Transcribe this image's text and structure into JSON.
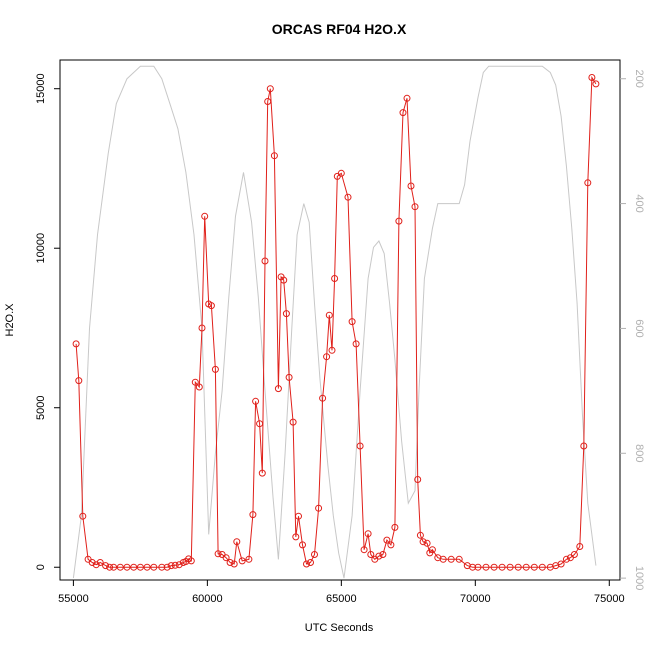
{
  "chart_data": {
    "type": "line",
    "title": "ORCAS RF04 H2O.X",
    "xlabel": "UTC Seconds",
    "ylabel": "H2O.X",
    "xlim": [
      54500,
      75400
    ],
    "ylim": [
      -400,
      15900
    ],
    "xticks": [
      55000,
      60000,
      65000,
      70000,
      75000
    ],
    "yticks": [
      0,
      5000,
      10000,
      15000
    ],
    "y2ticks": [
      200,
      400,
      600,
      800,
      1000
    ],
    "y2lim": [
      1003,
      170
    ],
    "grid": false,
    "colors": {
      "series": "#e0201a",
      "secondary": "#c8c8c8"
    },
    "series": [
      {
        "x": [
          55100,
          55200,
          55350,
          55550,
          55700,
          55850,
          56000,
          56200,
          56350,
          56500,
          56750,
          57000,
          57250,
          57500,
          57750,
          58000,
          58300,
          58500,
          58650,
          58800,
          58950,
          59100,
          59200,
          59300,
          59400,
          59550,
          59700,
          59800,
          59900,
          60050,
          60150,
          60300,
          60400,
          60550,
          60700,
          60850,
          61000,
          61100,
          61300,
          61550,
          61700,
          61800,
          61950,
          62050,
          62150,
          62250,
          62350,
          62500,
          62650,
          62750,
          62850,
          62950,
          63050,
          63200,
          63300,
          63400,
          63550,
          63700,
          63850,
          64000,
          64150,
          64300,
          64450,
          64550,
          64650,
          64750,
          64850,
          65000,
          65250,
          65400,
          65550,
          65700,
          65850,
          66000,
          66100,
          66250,
          66400,
          66550,
          66700,
          66850,
          67000,
          67150,
          67300,
          67450,
          67600,
          67750,
          67850,
          67950,
          68050,
          68200,
          68300,
          68400,
          68600,
          68800,
          69100,
          69400,
          69700,
          69900,
          70100,
          70400,
          70700,
          71000,
          71300,
          71600,
          71900,
          72200,
          72500,
          72800,
          73000,
          73200,
          73400,
          73550,
          73700,
          73900,
          74050,
          74200,
          74350,
          74500
        ],
        "y": [
          7000,
          5850,
          1600,
          250,
          150,
          80,
          150,
          50,
          0,
          0,
          0,
          0,
          0,
          0,
          0,
          0,
          0,
          0,
          50,
          60,
          80,
          150,
          180,
          260,
          200,
          5800,
          5650,
          7500,
          11000,
          8250,
          8200,
          6200,
          420,
          400,
          300,
          150,
          100,
          800,
          200,
          250,
          1650,
          5200,
          4500,
          2950,
          9600,
          14600,
          15000,
          12900,
          5600,
          9100,
          9000,
          7950,
          5950,
          4550,
          950,
          1600,
          700,
          100,
          150,
          400,
          1850,
          5300,
          6600,
          7900,
          6800,
          9050,
          12250,
          12350,
          11600,
          7700,
          7000,
          3800,
          550,
          1050,
          400,
          250,
          350,
          400,
          850,
          700,
          1250,
          10850,
          14250,
          14700,
          11950,
          11300,
          2750,
          1000,
          800,
          750,
          450,
          550,
          300,
          250,
          250,
          250,
          50,
          0,
          0,
          0,
          0,
          0,
          0,
          0,
          0,
          0,
          0,
          0,
          50,
          100,
          250,
          300,
          400,
          650,
          3800,
          12050,
          15350,
          15150
        ]
      },
      {
        "x": [
          55000,
          55300,
          55600,
          55900,
          56300,
          56600,
          57000,
          57500,
          58000,
          58300,
          58600,
          58900,
          59200,
          59500,
          59800,
          60050,
          60300,
          60550,
          60800,
          61050,
          61350,
          61650,
          61900,
          62150,
          62450,
          62650,
          62900,
          63150,
          63350,
          63600,
          63800,
          64000,
          64200,
          64500,
          64700,
          64900,
          65100,
          65400,
          65700,
          66000,
          66200,
          66400,
          66600,
          66800,
          67000,
          67250,
          67500,
          67750,
          67900,
          68100,
          68400,
          68600,
          68900,
          69200,
          69400,
          69600,
          69800,
          70100,
          70300,
          70500,
          71000,
          71500,
          72000,
          72500,
          72800,
          73000,
          73200,
          73400,
          73600,
          73800,
          74000,
          74200,
          74500
        ],
        "y": [
          1000,
          900,
          600,
          450,
          320,
          240,
          200,
          180,
          180,
          200,
          240,
          280,
          350,
          450,
          600,
          930,
          800,
          700,
          550,
          420,
          350,
          430,
          550,
          700,
          870,
          970,
          800,
          600,
          450,
          400,
          430,
          560,
          680,
          820,
          900,
          960,
          1000,
          900,
          700,
          520,
          470,
          460,
          480,
          560,
          650,
          780,
          880,
          860,
          700,
          520,
          440,
          400,
          400,
          400,
          400,
          370,
          300,
          230,
          190,
          180,
          180,
          180,
          180,
          180,
          190,
          210,
          260,
          340,
          440,
          560,
          740,
          880,
          980
        ]
      }
    ]
  }
}
